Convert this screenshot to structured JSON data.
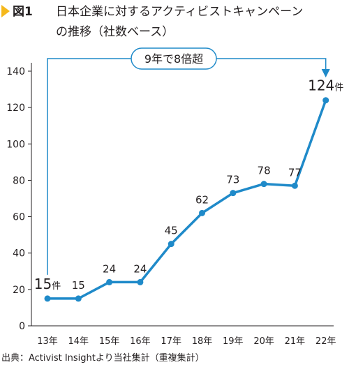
{
  "figure": {
    "label": "図1",
    "title_line1": "日本企業に対するアクティビストキャンペーン",
    "title_line2": "の推移（社数ベース）",
    "marker_color": "#f5b81c"
  },
  "callout": {
    "text": "9年で8倍超",
    "color": "#1f8ac9"
  },
  "source": "出典：Activist Insightより当社集計（重複集計）",
  "chart_data": {
    "type": "line",
    "categories": [
      "13年",
      "14年",
      "15年",
      "16年",
      "17年",
      "18年",
      "19年",
      "20年",
      "21年",
      "22年"
    ],
    "values": [
      15,
      15,
      24,
      24,
      45,
      62,
      73,
      78,
      77,
      124
    ],
    "data_labels": [
      "15",
      "15",
      "24",
      "24",
      "45",
      "62",
      "73",
      "78",
      "77",
      "124"
    ],
    "unit": "件",
    "ylim": [
      0,
      140
    ],
    "yticks": [
      0,
      20,
      40,
      60,
      80,
      100,
      120,
      140
    ],
    "grid": false,
    "color": "#1f8ac9"
  }
}
